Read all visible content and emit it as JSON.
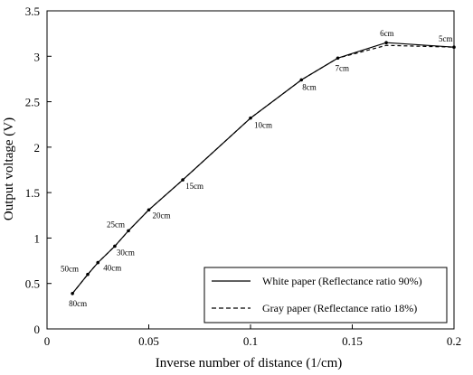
{
  "chart_data": {
    "type": "line",
    "xlabel": "Inverse number of distance (1/cm)",
    "ylabel": "Output voltage (V)",
    "xlim": [
      0,
      0.2
    ],
    "ylim": [
      0,
      3.5
    ],
    "x_ticks": [
      0,
      0.05,
      0.1,
      0.15,
      0.2
    ],
    "x_tick_labels": [
      "0",
      "0.05",
      "0.1",
      "0.15",
      "0.2"
    ],
    "y_ticks": [
      0,
      0.5,
      1,
      1.5,
      2,
      2.5,
      3,
      3.5
    ],
    "y_tick_labels": [
      "0",
      "0.5",
      "1",
      "1.5",
      "2",
      "2.5",
      "3",
      "3.5"
    ],
    "grid": false,
    "legend_position": "bottom-right",
    "series": [
      {
        "name": "White paper (Reflectance ratio 90%)",
        "line_style": "solid",
        "color": "#000000",
        "x": [
          0.0125,
          0.02,
          0.025,
          0.0333,
          0.04,
          0.05,
          0.0667,
          0.1,
          0.125,
          0.1429,
          0.1667,
          0.2
        ],
        "y": [
          0.39,
          0.6,
          0.73,
          0.91,
          1.08,
          1.31,
          1.64,
          2.32,
          2.74,
          2.98,
          3.15,
          3.1
        ]
      },
      {
        "name": "Gray paper (Reflectance ratio 18%)",
        "line_style": "dashed",
        "color": "#000000",
        "x": [
          0.0125,
          0.02,
          0.025,
          0.0333,
          0.04,
          0.05,
          0.0667,
          0.1,
          0.125,
          0.1429,
          0.1667,
          0.2
        ],
        "y": [
          0.39,
          0.6,
          0.73,
          0.91,
          1.08,
          1.31,
          1.64,
          2.32,
          2.74,
          2.98,
          3.12,
          3.1
        ]
      }
    ],
    "point_labels": [
      "80cm",
      "50cm",
      "40cm",
      "30cm",
      "25cm",
      "20cm",
      "15cm",
      "10cm",
      "8cm",
      "7cm",
      "6cm",
      "5cm"
    ]
  }
}
